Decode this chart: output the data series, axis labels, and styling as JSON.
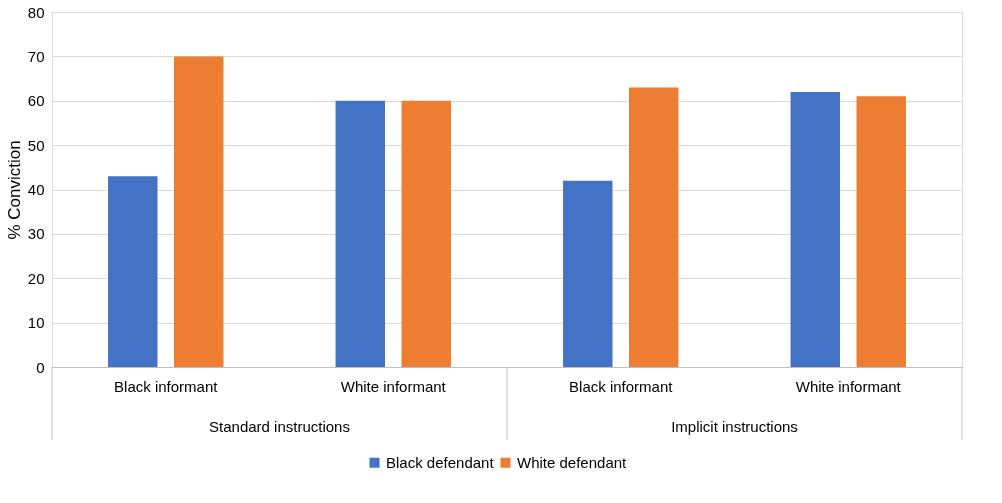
{
  "chart_data": {
    "type": "bar",
    "ylabel": "% Conviction",
    "categories": [
      "Black informant",
      "White informant",
      "Black informant",
      "White informant"
    ],
    "series": [
      {
        "name": "Black defendant",
        "color": "#4472c4",
        "values": [
          43,
          60,
          42,
          62
        ]
      },
      {
        "name": "White defendant",
        "color": "#ed7d31",
        "values": [
          70,
          60,
          63,
          61
        ]
      }
    ],
    "annotations": [
      "Standard instructions",
      "Implicit instructions"
    ],
    "ylim": [
      0,
      80
    ],
    "yticks": [
      0,
      10,
      20,
      30,
      40,
      50,
      60,
      70,
      80
    ],
    "grid": "y",
    "legend": "bottom"
  }
}
